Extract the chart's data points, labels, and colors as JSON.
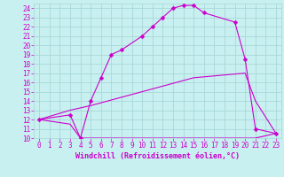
{
  "title": "",
  "xlabel": "Windchill (Refroidissement éolien,°C)",
  "bg_color": "#c8f0f0",
  "grid_color": "#a8d8d8",
  "line_color": "#cc00cc",
  "xlim": [
    -0.5,
    23.5
  ],
  "ylim": [
    10,
    24.5
  ],
  "xticks": [
    0,
    1,
    2,
    3,
    4,
    5,
    6,
    7,
    8,
    9,
    10,
    11,
    12,
    13,
    14,
    15,
    16,
    17,
    18,
    19,
    20,
    21,
    22,
    23
  ],
  "yticks": [
    10,
    11,
    12,
    13,
    14,
    15,
    16,
    17,
    18,
    19,
    20,
    21,
    22,
    23,
    24
  ],
  "line1_x": [
    0,
    3,
    4,
    5,
    6,
    7,
    8,
    10,
    11,
    12,
    13,
    14,
    15,
    16,
    19,
    20,
    21,
    23
  ],
  "line1_y": [
    12,
    12.5,
    10,
    14,
    16.5,
    19,
    19.5,
    21,
    22,
    23,
    24,
    24.3,
    24.3,
    23.5,
    22.5,
    18.5,
    11,
    10.5
  ],
  "line2_x": [
    0,
    3,
    4,
    9,
    17,
    21,
    23
  ],
  "line2_y": [
    12,
    11.5,
    10,
    10,
    10,
    10,
    10.5
  ],
  "line3_x": [
    0,
    3,
    5,
    10,
    15,
    20,
    21,
    23
  ],
  "line3_y": [
    12,
    13,
    13.5,
    15,
    16.5,
    17,
    14,
    10.5
  ],
  "marker": "D",
  "markersize": 2.5,
  "linewidth": 0.8,
  "tick_fontsize": 5.5,
  "xlabel_fontsize": 6.0
}
